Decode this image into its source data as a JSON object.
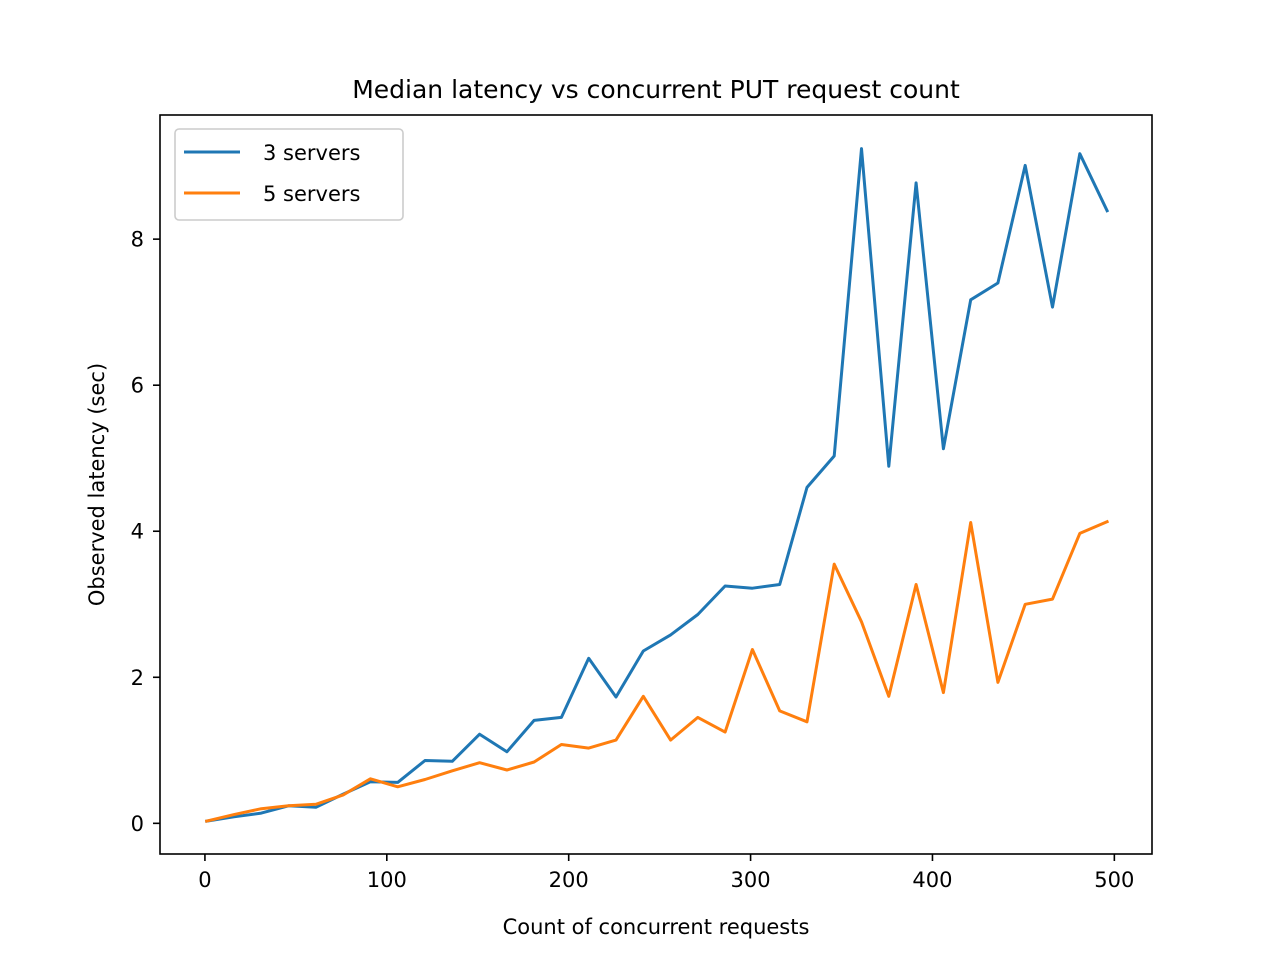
{
  "chart_data": {
    "type": "line",
    "title": "Median latency vs concurrent PUT request count",
    "xlabel": "Count of concurrent requests",
    "ylabel": "Observed latency (sec)",
    "xlim": [
      -24.7,
      520.7
    ],
    "ylim": [
      -0.42,
      9.7
    ],
    "xticks": [
      0,
      100,
      200,
      300,
      400,
      500
    ],
    "yticks": [
      0,
      2,
      4,
      6,
      8
    ],
    "grid": false,
    "legend_position": "upper-left",
    "x": [
      1,
      16,
      31,
      46,
      61,
      76,
      91,
      106,
      121,
      136,
      151,
      166,
      181,
      196,
      211,
      226,
      241,
      256,
      271,
      286,
      301,
      316,
      331,
      346,
      361,
      376,
      391,
      406,
      421,
      436,
      451,
      466,
      481,
      496
    ],
    "series": [
      {
        "name": "3 servers",
        "color": "#1f77b4",
        "values": [
          0.03,
          0.09,
          0.14,
          0.24,
          0.22,
          0.4,
          0.57,
          0.56,
          0.86,
          0.85,
          1.22,
          0.98,
          1.41,
          1.45,
          2.26,
          1.73,
          2.36,
          2.58,
          2.86,
          3.25,
          3.22,
          3.27,
          4.6,
          5.03,
          9.24,
          4.89,
          8.77,
          5.13,
          7.17,
          7.4,
          9.01,
          7.07,
          9.17,
          8.39
        ]
      },
      {
        "name": "5 servers",
        "color": "#ff7f0e",
        "values": [
          0.03,
          0.12,
          0.2,
          0.24,
          0.26,
          0.39,
          0.61,
          0.5,
          0.6,
          0.72,
          0.83,
          0.73,
          0.84,
          1.08,
          1.03,
          1.14,
          1.74,
          1.14,
          1.45,
          1.25,
          2.38,
          1.54,
          1.39,
          3.55,
          2.76,
          1.74,
          3.27,
          1.79,
          4.12,
          1.93,
          3.0,
          3.07,
          3.97,
          4.13
        ]
      }
    ]
  }
}
